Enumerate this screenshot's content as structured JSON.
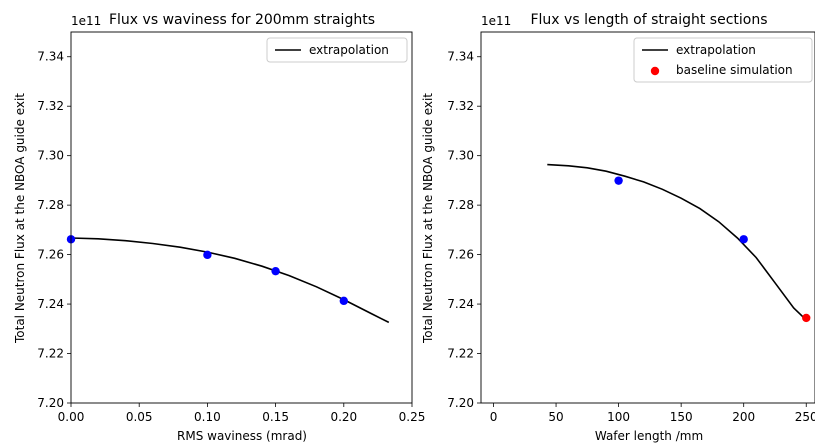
{
  "chart_data": [
    {
      "type": "scatter",
      "title": "Flux vs waviness for 200mm straights",
      "xlabel": "RMS waviness (mrad)",
      "ylabel": "Total Neutron Flux at the NBOA guide exit",
      "y_offset_label": "1e11",
      "xlim": [
        0.0,
        0.25
      ],
      "ylim": [
        7.2,
        7.35
      ],
      "x_ticks": [
        0.0,
        0.05,
        0.1,
        0.15,
        0.2,
        0.25
      ],
      "x_tick_labels": [
        "0.00",
        "0.05",
        "0.10",
        "0.15",
        "0.20",
        "0.25"
      ],
      "y_ticks": [
        7.2,
        7.22,
        7.24,
        7.26,
        7.28,
        7.3,
        7.32,
        7.34
      ],
      "y_tick_labels": [
        "7.20",
        "7.22",
        "7.24",
        "7.26",
        "7.28",
        "7.30",
        "7.32",
        "7.34"
      ],
      "legend_position": "top-right",
      "grid": false,
      "series": [
        {
          "name": "extrapolation",
          "kind": "line",
          "color": "#000000",
          "x": [
            0.0,
            0.02,
            0.04,
            0.06,
            0.08,
            0.1,
            0.12,
            0.14,
            0.16,
            0.18,
            0.2,
            0.22,
            0.233
          ],
          "y": [
            7.2667,
            7.2664,
            7.2656,
            7.2645,
            7.263,
            7.261,
            7.2585,
            7.2553,
            7.2515,
            7.247,
            7.2418,
            7.2362,
            7.2326
          ]
        },
        {
          "kind": "points",
          "color": "#0000ff",
          "x": [
            0.0,
            0.1,
            0.15,
            0.2
          ],
          "y": [
            7.2662,
            7.2599,
            7.2533,
            7.2413
          ]
        }
      ]
    },
    {
      "type": "scatter",
      "title": "Flux vs length of straight sections",
      "xlabel": "Wafer length /mm",
      "ylabel": "Total Neutron Flux at the NBOA guide exit",
      "y_offset_label": "1e11",
      "xlim": [
        -10,
        257
      ],
      "ylim": [
        7.2,
        7.35
      ],
      "x_ticks": [
        0,
        50,
        100,
        150,
        200,
        250
      ],
      "x_tick_labels": [
        "0",
        "50",
        "100",
        "150",
        "200",
        "250"
      ],
      "y_ticks": [
        7.2,
        7.22,
        7.24,
        7.26,
        7.28,
        7.3,
        7.32,
        7.34
      ],
      "y_tick_labels": [
        "7.20",
        "7.22",
        "7.24",
        "7.26",
        "7.28",
        "7.30",
        "7.32",
        "7.34"
      ],
      "legend_position": "top-right",
      "grid": false,
      "series": [
        {
          "name": "extrapolation",
          "kind": "line",
          "color": "#000000",
          "x": [
            43,
            60,
            75,
            90,
            105,
            120,
            135,
            150,
            165,
            180,
            195,
            210,
            225,
            240,
            250
          ],
          "y": [
            7.2964,
            7.2959,
            7.2951,
            7.2937,
            7.2917,
            7.2894,
            7.2864,
            7.2828,
            7.2786,
            7.2733,
            7.2667,
            7.2588,
            7.2486,
            7.2384,
            7.2336
          ]
        },
        {
          "kind": "points",
          "color": "#0000ff",
          "x": [
            100,
            200
          ],
          "y": [
            7.2899,
            7.2662
          ]
        },
        {
          "name": "baseline simulation",
          "kind": "points",
          "color": "#ff0000",
          "x": [
            250
          ],
          "y": [
            7.2344
          ]
        }
      ]
    }
  ]
}
